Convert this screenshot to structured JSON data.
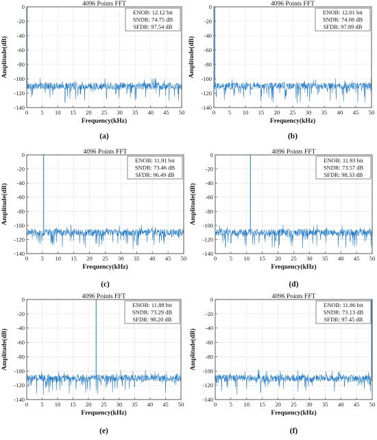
{
  "chart_data": [
    {
      "type": "line",
      "caption": "(a)",
      "title": "4096 Points FFT",
      "xlabel": "Frequency(kHz)",
      "ylabel": "Amplitude(dB)",
      "xlim": [
        0,
        50
      ],
      "ylim": [
        -140,
        0
      ],
      "xticks": [
        "0",
        "5",
        "10",
        "15",
        "20",
        "25",
        "30",
        "35",
        "40",
        "45",
        "50"
      ],
      "yticks": [
        "0",
        "-20",
        "-40",
        "-60",
        "-80",
        "-100",
        "-120",
        "-140"
      ],
      "grid": true,
      "line_color": "#1f77c4",
      "noise_floor_db": -110,
      "signal_tone_khz": 0.1,
      "metrics": [
        "ENOB: 12.12 bit",
        "SNDR: 74.75 dB",
        "SFDR: 97.54 dB"
      ]
    },
    {
      "type": "line",
      "caption": "(b)",
      "title": "4096 Points FFT",
      "xlabel": "Frequency(kHz)",
      "ylabel": "Amplitude(dB)",
      "xlim": [
        0,
        50
      ],
      "ylim": [
        -140,
        0
      ],
      "xticks": [
        "0",
        "5",
        "10",
        "15",
        "20",
        "25",
        "30",
        "35",
        "40",
        "45",
        "50"
      ],
      "yticks": [
        "0",
        "-20",
        "-40",
        "-60",
        "-80",
        "-100",
        "-120",
        "-140"
      ],
      "grid": true,
      "line_color": "#1f77c4",
      "noise_floor_db": -110,
      "signal_tone_khz": 0.3,
      "metrics": [
        "ENOB: 12.01 bit",
        "SNDR: 74.08 dB",
        "SFDR: 97.89 dB"
      ]
    },
    {
      "type": "line",
      "caption": "(c)",
      "title": "4096 Points FFT",
      "xlabel": "Frequency(kHz)",
      "ylabel": "Amplitude(dB)",
      "xlim": [
        0,
        50
      ],
      "ylim": [
        -140,
        0
      ],
      "xticks": [
        "0",
        "5",
        "10",
        "15",
        "20",
        "25",
        "30",
        "35",
        "40",
        "45",
        "50"
      ],
      "yticks": [
        "0",
        "-20",
        "-40",
        "-60",
        "-80",
        "-100",
        "-120",
        "-140"
      ],
      "grid": true,
      "line_color": "#1f77c4",
      "noise_floor_db": -110,
      "signal_tone_khz": 5.4,
      "metrics": [
        "ENOB: 11.91 bit",
        "SNDR: 73.46 dB",
        "SFDR: 96.49 dB"
      ]
    },
    {
      "type": "line",
      "caption": "(d)",
      "title": "4096 Points FFT",
      "xlabel": "Frequency(kHz)",
      "ylabel": "Amplitude(dB)",
      "xlim": [
        0,
        50
      ],
      "ylim": [
        -140,
        0
      ],
      "xticks": [
        "0",
        "5",
        "10",
        "15",
        "20",
        "25",
        "30",
        "35",
        "40",
        "45",
        "50"
      ],
      "yticks": [
        "0",
        "-20",
        "-40",
        "-60",
        "-80",
        "-100",
        "-120",
        "-140"
      ],
      "grid": true,
      "line_color": "#1f77c4",
      "noise_floor_db": -110,
      "signal_tone_khz": 11.2,
      "metrics": [
        "ENOB: 11.93 bit",
        "SNDR: 73.57 dB",
        "SFDR: 98.33 dB"
      ]
    },
    {
      "type": "line",
      "caption": "(e)",
      "title": "4096 Points FFT",
      "xlabel": "Frequency(kHz)",
      "ylabel": "Amplitude(dB)",
      "xlim": [
        0,
        50
      ],
      "ylim": [
        -140,
        0
      ],
      "xticks": [
        "0",
        "5",
        "10",
        "15",
        "20",
        "25",
        "30",
        "35",
        "40",
        "45",
        "50"
      ],
      "yticks": [
        "0",
        "-20",
        "-40",
        "-60",
        "-80",
        "-100",
        "-120",
        "-140"
      ],
      "grid": true,
      "line_color": "#1f77c4",
      "noise_floor_db": -110,
      "signal_tone_khz": 22.5,
      "metrics": [
        "ENOB: 11.88 bit",
        "SNDR: 73.29 dB",
        "SFDR: 98.20 dB"
      ]
    },
    {
      "type": "line",
      "caption": "(f)",
      "title": "4096 Points FFT",
      "xlabel": "Frequency(kHz)",
      "ylabel": "Amplitude(dB)",
      "xlim": [
        0,
        50
      ],
      "ylim": [
        -140,
        0
      ],
      "xticks": [
        "0",
        "5",
        "10",
        "15",
        "20",
        "25",
        "30",
        "35",
        "40",
        "45",
        "50"
      ],
      "yticks": [
        "0",
        "-20",
        "-40",
        "-60",
        "-80",
        "-100",
        "-120",
        "-140"
      ],
      "grid": true,
      "line_color": "#1f77c4",
      "noise_floor_db": -110,
      "signal_tone_khz": 49.8,
      "metrics": [
        "ENOB: 11.86 bit",
        "SNDR: 73.13 dB",
        "SFDR: 97.45 dB"
      ]
    }
  ]
}
